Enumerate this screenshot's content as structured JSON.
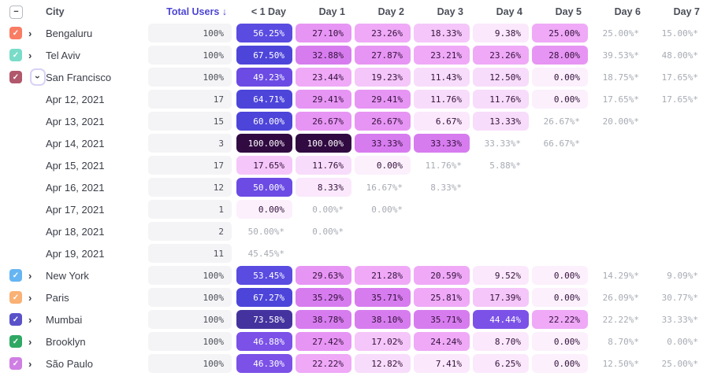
{
  "table": {
    "select_all_state": "indeterminate",
    "columns": [
      {
        "label": "City",
        "align": "left",
        "sorted": false
      },
      {
        "label": "Total Users ↓",
        "align": "right",
        "sorted": true
      },
      {
        "label": "< 1 Day",
        "align": "right",
        "sorted": false
      },
      {
        "label": "Day 1",
        "align": "right",
        "sorted": false
      },
      {
        "label": "Day 2",
        "align": "right",
        "sorted": false
      },
      {
        "label": "Day 3",
        "align": "right",
        "sorted": false
      },
      {
        "label": "Day 4",
        "align": "right",
        "sorted": false
      },
      {
        "label": "Day 5",
        "align": "right",
        "sorted": false
      },
      {
        "label": "Day 6",
        "align": "right",
        "sorted": false
      },
      {
        "label": "Day 7",
        "align": "right",
        "sorted": false
      }
    ],
    "rows": [
      {
        "type": "city",
        "label": "Bengaluru",
        "checkbox_color": "#f97c64",
        "checked": true,
        "expanded": false,
        "total": "100%",
        "cells": [
          {
            "text": "56.25%",
            "v": 56.25
          },
          {
            "text": "27.10%",
            "v": 27.1
          },
          {
            "text": "23.26%",
            "v": 23.26
          },
          {
            "text": "18.33%",
            "v": 18.33
          },
          {
            "text": "9.38%",
            "v": 9.38
          },
          {
            "text": "25.00%",
            "v": 25.0
          },
          {
            "text": "25.00%*",
            "est": true
          },
          {
            "text": "15.00%*",
            "est": true
          }
        ]
      },
      {
        "type": "city",
        "label": "Tel Aviv",
        "checkbox_color": "#79dcc8",
        "checked": true,
        "expanded": false,
        "total": "100%",
        "cells": [
          {
            "text": "67.50%",
            "v": 67.5
          },
          {
            "text": "32.88%",
            "v": 32.88
          },
          {
            "text": "27.87%",
            "v": 27.87
          },
          {
            "text": "23.21%",
            "v": 23.21
          },
          {
            "text": "23.26%",
            "v": 23.26
          },
          {
            "text": "28.00%",
            "v": 28.0
          },
          {
            "text": "39.53%*",
            "est": true
          },
          {
            "text": "48.00%*",
            "est": true
          }
        ]
      },
      {
        "type": "city",
        "label": "San Francisco",
        "checkbox_color": "#b2586c",
        "checked": true,
        "expanded": true,
        "total": "100%",
        "cells": [
          {
            "text": "49.23%",
            "v": 49.23
          },
          {
            "text": "23.44%",
            "v": 23.44
          },
          {
            "text": "19.23%",
            "v": 19.23
          },
          {
            "text": "11.43%",
            "v": 11.43
          },
          {
            "text": "12.50%",
            "v": 12.5
          },
          {
            "text": "0.00%",
            "v": 0.0
          },
          {
            "text": "18.75%*",
            "est": true
          },
          {
            "text": "17.65%*",
            "est": true
          }
        ]
      },
      {
        "type": "date",
        "label": "Apr 12, 2021",
        "total": "17",
        "cells": [
          {
            "text": "64.71%",
            "v": 64.71
          },
          {
            "text": "29.41%",
            "v": 29.41
          },
          {
            "text": "29.41%",
            "v": 29.41
          },
          {
            "text": "11.76%",
            "v": 11.76
          },
          {
            "text": "11.76%",
            "v": 11.76
          },
          {
            "text": "0.00%",
            "v": 0.0
          },
          {
            "text": "17.65%*",
            "est": true
          },
          {
            "text": "17.65%*",
            "est": true
          }
        ]
      },
      {
        "type": "date",
        "label": "Apr 13, 2021",
        "total": "15",
        "cells": [
          {
            "text": "60.00%",
            "v": 60.0
          },
          {
            "text": "26.67%",
            "v": 26.67
          },
          {
            "text": "26.67%",
            "v": 26.67
          },
          {
            "text": "6.67%",
            "v": 6.67
          },
          {
            "text": "13.33%",
            "v": 13.33
          },
          {
            "text": "26.67%*",
            "est": true
          },
          {
            "text": "20.00%*",
            "est": true
          },
          null
        ]
      },
      {
        "type": "date",
        "label": "Apr 14, 2021",
        "total": "3",
        "cells": [
          {
            "text": "100.00%",
            "v": 100.0
          },
          {
            "text": "100.00%",
            "v": 100.0
          },
          {
            "text": "33.33%",
            "v": 33.33
          },
          {
            "text": "33.33%",
            "v": 33.33
          },
          {
            "text": "33.33%*",
            "est": true
          },
          {
            "text": "66.67%*",
            "est": true
          },
          null,
          null
        ]
      },
      {
        "type": "date",
        "label": "Apr 15, 2021",
        "total": "17",
        "cells": [
          {
            "text": "17.65%",
            "v": 17.65
          },
          {
            "text": "11.76%",
            "v": 11.76
          },
          {
            "text": "0.00%",
            "v": 0.0
          },
          {
            "text": "11.76%*",
            "est": true
          },
          {
            "text": "5.88%*",
            "est": true
          },
          null,
          null,
          null
        ]
      },
      {
        "type": "date",
        "label": "Apr 16, 2021",
        "total": "12",
        "cells": [
          {
            "text": "50.00%",
            "v": 50.0
          },
          {
            "text": "8.33%",
            "v": 8.33
          },
          {
            "text": "16.67%*",
            "est": true
          },
          {
            "text": "8.33%*",
            "est": true
          },
          null,
          null,
          null,
          null
        ]
      },
      {
        "type": "date",
        "label": "Apr 17, 2021",
        "total": "1",
        "cells": [
          {
            "text": "0.00%",
            "v": 0.0
          },
          {
            "text": "0.00%*",
            "est": true
          },
          {
            "text": "0.00%*",
            "est": true
          },
          null,
          null,
          null,
          null,
          null
        ]
      },
      {
        "type": "date",
        "label": "Apr 18, 2021",
        "total": "2",
        "cells": [
          {
            "text": "50.00%*",
            "est": true
          },
          {
            "text": "0.00%*",
            "est": true
          },
          null,
          null,
          null,
          null,
          null,
          null
        ]
      },
      {
        "type": "date",
        "label": "Apr 19, 2021",
        "total": "11",
        "cells": [
          {
            "text": "45.45%*",
            "est": true
          },
          null,
          null,
          null,
          null,
          null,
          null,
          null
        ]
      },
      {
        "type": "city",
        "label": "New York",
        "checkbox_color": "#66b5f2",
        "checked": true,
        "expanded": false,
        "total": "100%",
        "cells": [
          {
            "text": "53.45%",
            "v": 53.45
          },
          {
            "text": "29.63%",
            "v": 29.63
          },
          {
            "text": "21.28%",
            "v": 21.28
          },
          {
            "text": "20.59%",
            "v": 20.59
          },
          {
            "text": "9.52%",
            "v": 9.52
          },
          {
            "text": "0.00%",
            "v": 0.0
          },
          {
            "text": "14.29%*",
            "est": true
          },
          {
            "text": "9.09%*",
            "est": true
          }
        ]
      },
      {
        "type": "city",
        "label": "Paris",
        "checkbox_color": "#f9b175",
        "checked": true,
        "expanded": false,
        "total": "100%",
        "cells": [
          {
            "text": "67.27%",
            "v": 67.27
          },
          {
            "text": "35.29%",
            "v": 35.29
          },
          {
            "text": "35.71%",
            "v": 35.71
          },
          {
            "text": "25.81%",
            "v": 25.81
          },
          {
            "text": "17.39%",
            "v": 17.39
          },
          {
            "text": "0.00%",
            "v": 0.0
          },
          {
            "text": "26.09%*",
            "est": true
          },
          {
            "text": "30.77%*",
            "est": true
          }
        ]
      },
      {
        "type": "city",
        "label": "Mumbai",
        "checkbox_color": "#5a52c8",
        "checked": true,
        "expanded": false,
        "total": "100%",
        "cells": [
          {
            "text": "73.58%",
            "v": 73.58
          },
          {
            "text": "38.78%",
            "v": 38.78
          },
          {
            "text": "38.10%",
            "v": 38.1
          },
          {
            "text": "35.71%",
            "v": 35.71
          },
          {
            "text": "44.44%",
            "v": 44.44
          },
          {
            "text": "22.22%",
            "v": 22.22
          },
          {
            "text": "22.22%*",
            "est": true
          },
          {
            "text": "33.33%*",
            "est": true
          }
        ]
      },
      {
        "type": "city",
        "label": "Brooklyn",
        "checkbox_color": "#2fa864",
        "checked": true,
        "expanded": false,
        "total": "100%",
        "cells": [
          {
            "text": "46.88%",
            "v": 46.88
          },
          {
            "text": "27.42%",
            "v": 27.42
          },
          {
            "text": "17.02%",
            "v": 17.02
          },
          {
            "text": "24.24%",
            "v": 24.24
          },
          {
            "text": "8.70%",
            "v": 8.7
          },
          {
            "text": "0.00%",
            "v": 0.0
          },
          {
            "text": "8.70%*",
            "est": true
          },
          {
            "text": "0.00%*",
            "est": true
          }
        ]
      },
      {
        "type": "city",
        "label": "São Paulo",
        "checkbox_color": "#cf7ee4",
        "checked": true,
        "expanded": false,
        "total": "100%",
        "cells": [
          {
            "text": "46.30%",
            "v": 46.3
          },
          {
            "text": "22.22%",
            "v": 22.22
          },
          {
            "text": "12.82%",
            "v": 12.82
          },
          {
            "text": "7.41%",
            "v": 7.41
          },
          {
            "text": "6.25%",
            "v": 6.25
          },
          {
            "text": "0.00%",
            "v": 0.0
          },
          {
            "text": "12.50%*",
            "est": true
          },
          {
            "text": "25.00%*",
            "est": true
          }
        ]
      }
    ]
  },
  "colors": {
    "sorted_header": "#4c45d5",
    "header_text": "#4b4f59",
    "name_text": "#3a3e47",
    "estimate_text": "#a7abb3",
    "total_bar_bg": "#f4f4f6",
    "scale": [
      {
        "min": 95,
        "bg": "#310a42",
        "fg": "#ffffff"
      },
      {
        "min": 70,
        "bg": "#44339e",
        "fg": "#ffffff"
      },
      {
        "min": 60,
        "bg": "#4d45da",
        "fg": "#ffffff"
      },
      {
        "min": 52,
        "bg": "#5a4be1",
        "fg": "#ffffff"
      },
      {
        "min": 48,
        "bg": "#6b4be4",
        "fg": "#ffffff"
      },
      {
        "min": 42,
        "bg": "#7b51e8",
        "fg": "#ffffff"
      },
      {
        "min": 30,
        "bg": "#d77cef",
        "fg": "#33123b"
      },
      {
        "min": 26,
        "bg": "#e795f4",
        "fg": "#33123b"
      },
      {
        "min": 20,
        "bg": "#efa9f7",
        "fg": "#33123b"
      },
      {
        "min": 15,
        "bg": "#f5c6f9",
        "fg": "#33123b"
      },
      {
        "min": 10,
        "bg": "#f8dcfb",
        "fg": "#33123b"
      },
      {
        "min": 4,
        "bg": "#fbe8fc",
        "fg": "#33123b"
      },
      {
        "min": 0,
        "bg": "#fcf0fd",
        "fg": "#33123b"
      }
    ],
    "icons": {
      "check": "✓",
      "minus": "−",
      "chevron_right": "›"
    }
  }
}
